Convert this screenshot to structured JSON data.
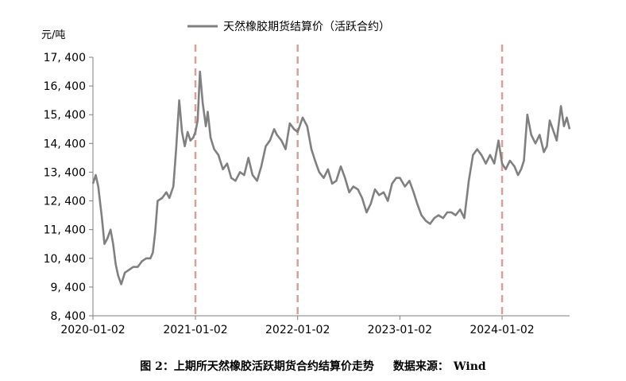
{
  "chart_data": {
    "type": "line",
    "ylabel": "元/吨",
    "xlabel": "",
    "legend": "top-center",
    "grid": false,
    "ylim": [
      8400,
      17400
    ],
    "yticks": [
      8400,
      9400,
      10400,
      11400,
      12400,
      13400,
      14400,
      15400,
      16400,
      17400
    ],
    "ytick_labels": [
      "8, 400",
      "9, 400",
      "10, 400",
      "11, 400",
      "12, 400",
      "13, 400",
      "14, 400",
      "15, 400",
      "16, 400",
      "17, 400"
    ],
    "xlim": [
      "2020-01-02",
      "2024-08-30"
    ],
    "xticks": [
      "2020-01-02",
      "2021-01-02",
      "2022-01-02",
      "2023-01-02",
      "2024-01-02"
    ],
    "xtick_labels": [
      "2020-01-02",
      "2021-01-02",
      "2022-01-02",
      "2023-01-02",
      "2024-01-02"
    ],
    "series": [
      {
        "name": "天然橡胶期货结算价（活跃合约）",
        "color": "#808080",
        "x": [
          "2020-01-02",
          "2020-01-12",
          "2020-01-21",
          "2020-02-03",
          "2020-02-12",
          "2020-02-23",
          "2020-03-05",
          "2020-03-14",
          "2020-03-23",
          "2020-04-01",
          "2020-04-12",
          "2020-04-25",
          "2020-05-10",
          "2020-05-25",
          "2020-06-10",
          "2020-06-25",
          "2020-07-10",
          "2020-07-25",
          "2020-08-03",
          "2020-08-11",
          "2020-08-20",
          "2020-09-05",
          "2020-09-20",
          "2020-10-01",
          "2020-10-15",
          "2020-10-25",
          "2020-11-05",
          "2020-11-15",
          "2020-11-25",
          "2020-12-05",
          "2020-12-15",
          "2020-12-25",
          "2021-01-02",
          "2021-01-10",
          "2021-01-18",
          "2021-01-28",
          "2021-02-08",
          "2021-02-15",
          "2021-02-25",
          "2021-03-10",
          "2021-03-25",
          "2021-04-10",
          "2021-04-25",
          "2021-05-10",
          "2021-05-25",
          "2021-06-10",
          "2021-06-25",
          "2021-07-10",
          "2021-07-25",
          "2021-08-10",
          "2021-08-25",
          "2021-09-10",
          "2021-09-25",
          "2021-10-10",
          "2021-10-20",
          "2021-11-05",
          "2021-11-20",
          "2021-12-05",
          "2021-12-20",
          "2022-01-02",
          "2022-01-20",
          "2022-02-05",
          "2022-02-20",
          "2022-03-05",
          "2022-03-20",
          "2022-04-05",
          "2022-04-20",
          "2022-05-05",
          "2022-05-20",
          "2022-06-05",
          "2022-06-20",
          "2022-07-05",
          "2022-07-20",
          "2022-08-05",
          "2022-08-20",
          "2022-09-05",
          "2022-09-20",
          "2022-10-05",
          "2022-10-20",
          "2022-11-05",
          "2022-11-20",
          "2022-12-05",
          "2022-12-20",
          "2023-01-02",
          "2023-01-20",
          "2023-02-05",
          "2023-02-20",
          "2023-03-05",
          "2023-03-20",
          "2023-04-05",
          "2023-04-20",
          "2023-05-05",
          "2023-05-20",
          "2023-06-05",
          "2023-06-20",
          "2023-07-05",
          "2023-07-20",
          "2023-08-05",
          "2023-08-20",
          "2023-09-05",
          "2023-09-20",
          "2023-10-05",
          "2023-10-20",
          "2023-11-05",
          "2023-11-20",
          "2023-12-05",
          "2023-12-20",
          "2024-01-02",
          "2024-01-15",
          "2024-01-30",
          "2024-02-15",
          "2024-02-28",
          "2024-03-10",
          "2024-03-20",
          "2024-04-01",
          "2024-04-15",
          "2024-04-30",
          "2024-05-15",
          "2024-05-30",
          "2024-06-10",
          "2024-06-20",
          "2024-07-01",
          "2024-07-15",
          "2024-07-30",
          "2024-08-10",
          "2024-08-20",
          "2024-08-30"
        ],
        "y": [
          13000,
          13300,
          12900,
          11800,
          10900,
          11100,
          11400,
          10900,
          10200,
          9800,
          9500,
          9900,
          10000,
          10100,
          10100,
          10300,
          10400,
          10400,
          10600,
          11300,
          12400,
          12500,
          12700,
          12500,
          12900,
          14200,
          15900,
          14800,
          14300,
          14800,
          14500,
          14600,
          14800,
          15200,
          16900,
          15800,
          15000,
          15500,
          14600,
          14200,
          14000,
          13500,
          13700,
          13200,
          13100,
          13400,
          13300,
          13900,
          13300,
          13100,
          13600,
          14300,
          14500,
          14900,
          14700,
          14500,
          14200,
          15100,
          14900,
          14800,
          15300,
          15000,
          14200,
          13800,
          13400,
          13200,
          13500,
          13000,
          13100,
          13600,
          13200,
          12700,
          12900,
          12800,
          12500,
          12000,
          12300,
          12800,
          12600,
          12700,
          12400,
          13000,
          13200,
          13200,
          12900,
          13100,
          12700,
          12300,
          11900,
          11700,
          11600,
          11800,
          11900,
          11800,
          12000,
          12000,
          11900,
          12100,
          11800,
          13100,
          14000,
          14200,
          14000,
          13700,
          14000,
          13700,
          14500,
          13700,
          13500,
          13800,
          13600,
          13300,
          13500,
          13800,
          15400,
          14700,
          14400,
          14700,
          14100,
          14300,
          15200,
          14900,
          14500,
          15700,
          15000,
          15300,
          14900
        ]
      }
    ],
    "vlines": [
      "2021-01-02",
      "2022-01-02",
      "2024-01-02"
    ],
    "vline_color": "#d9a09a",
    "axis_color": "#7f7f7f"
  },
  "caption": {
    "figure": "图 2：上期所天然橡胶活跃期货合约结算价走势",
    "source_label": "数据来源：",
    "source_value": "Wind"
  }
}
